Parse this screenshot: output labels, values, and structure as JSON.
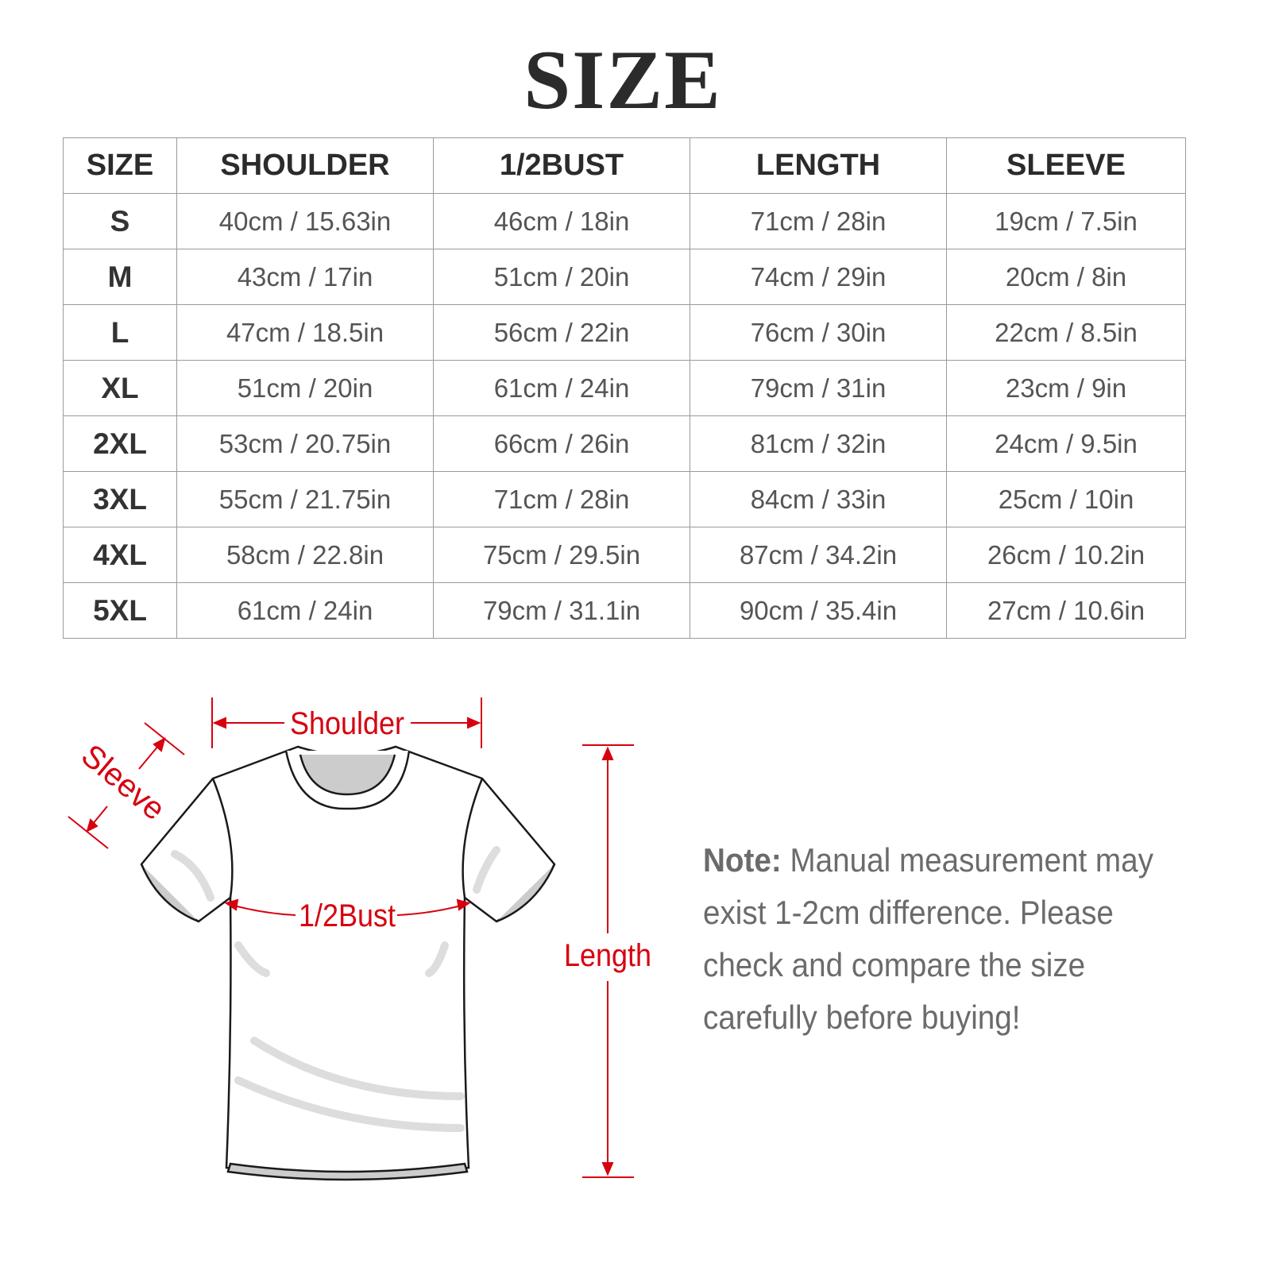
{
  "title": "SIZE",
  "table": {
    "headers": [
      "SIZE",
      "SHOULDER",
      "1/2BUST",
      "LENGTH",
      "SLEEVE"
    ],
    "rows": [
      [
        "S",
        "40cm / 15.63in",
        "46cm / 18in",
        "71cm / 28in",
        "19cm / 7.5in"
      ],
      [
        "M",
        "43cm / 17in",
        "51cm / 20in",
        "74cm / 29in",
        "20cm / 8in"
      ],
      [
        "L",
        "47cm / 18.5in",
        "56cm / 22in",
        "76cm / 30in",
        "22cm / 8.5in"
      ],
      [
        "XL",
        "51cm / 20in",
        "61cm / 24in",
        "79cm / 31in",
        "23cm / 9in"
      ],
      [
        "2XL",
        "53cm / 20.75in",
        "66cm / 26in",
        "81cm / 32in",
        "24cm / 9.5in"
      ],
      [
        "3XL",
        "55cm / 21.75in",
        "71cm / 28in",
        "84cm / 33in",
        "25cm / 10in"
      ],
      [
        "4XL",
        "58cm / 22.8in",
        "75cm / 29.5in",
        "87cm / 34.2in",
        "26cm / 10.2in"
      ],
      [
        "5XL",
        "61cm / 24in",
        "79cm / 31.1in",
        "90cm / 35.4in",
        "27cm / 10.6in"
      ]
    ]
  },
  "diagram": {
    "labels": {
      "shoulder": "Shoulder",
      "sleeve": "Sleeve",
      "bust": "1/2Bust",
      "length": "Length"
    },
    "accent_color": "#d7000f"
  },
  "note": {
    "label": "Note:",
    "text": " Manual measurement may exist 1-2cm difference. Please check and compare the size carefully before buying!"
  }
}
